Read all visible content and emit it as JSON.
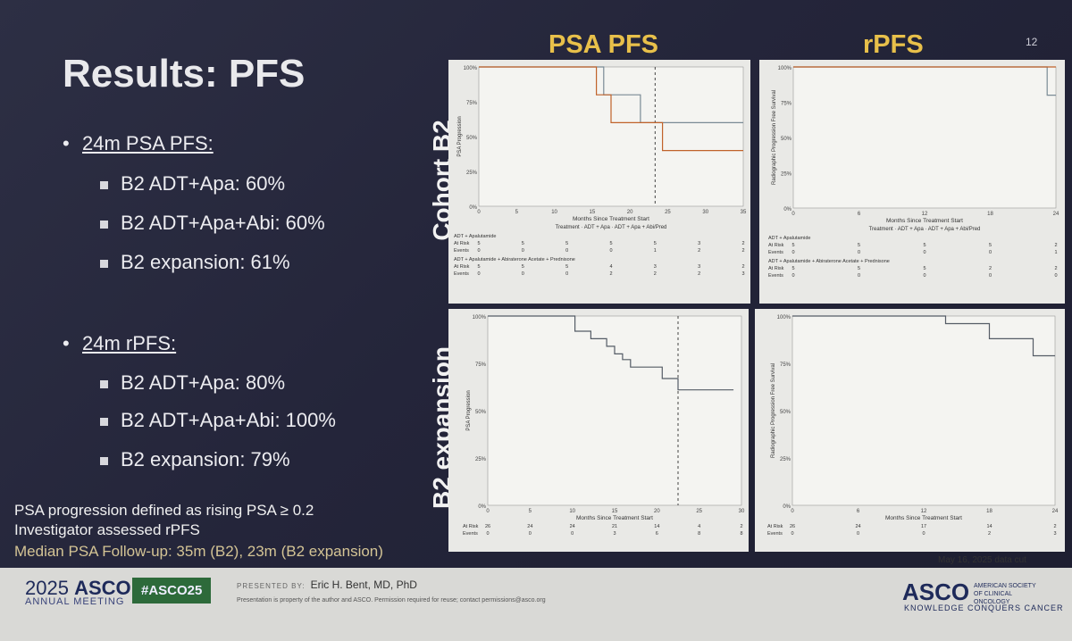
{
  "slide": {
    "title": "Results: PFS",
    "page_number": "12",
    "psa_pfs_heading": "24m PSA PFS:",
    "psa_items": [
      "B2 ADT+Apa: 60%",
      "B2 ADT+Apa+Abi: 60%",
      "B2 expansion: 61%"
    ],
    "rpfs_heading": "24m rPFS:",
    "rpfs_items": [
      "B2 ADT+Apa: 80%",
      "B2 ADT+Apa+Abi: 100%",
      "B2 expansion: 79%"
    ],
    "notes": [
      "PSA progression defined as rising PSA ≥ 0.2",
      "Investigator assessed rPFS",
      "Median PSA Follow-up: 35m (B2), 23m (B2 expansion)"
    ],
    "col_headers": [
      "PSA PFS",
      "rPFS"
    ],
    "row_headers": [
      "Cohort B2",
      "B2 expansion"
    ],
    "data_cut": "May 16, 2025 data cut"
  },
  "footer": {
    "year": "2025",
    "asco": "ASCO",
    "annual_meeting": "ANNUAL MEETING",
    "hashtag": "#ASCO25",
    "presented_by": "PRESENTED BY:",
    "presenter": "Eric H. Bent, MD, PhD",
    "disclaimer": "Presentation is property of the author and ASCO. Permission required for reuse; contact permissions@asco.org",
    "right_logo": "ASCO",
    "right_logo_sub": "AMERICAN SOCIETY OF CLINICAL ONCOLOGY",
    "tagline": "KNOWLEDGE CONQUERS CANCER"
  },
  "colors": {
    "gold": "#e8c04a",
    "adt_apa": "#7a8a95",
    "adt_apa_abi": "#c0622a"
  },
  "chart_data": [
    {
      "type": "line",
      "panel": "Cohort B2 PSA PFS",
      "xlabel": "Months Since Treatment Start",
      "ylabel": "PSA Progression",
      "x_ticks": [
        "0",
        "5",
        "10",
        "15",
        "20",
        "25",
        "30",
        "35"
      ],
      "y_ticks": [
        "0%",
        "25%",
        "50%",
        "75%",
        "100%"
      ],
      "xlim": [
        0,
        36
      ],
      "ylim": [
        0,
        1
      ],
      "legend": "Treatment  ·  ADT + Apa  ·  ADT + Apa + Abi/Pred",
      "series": [
        {
          "name": "ADT + Apa",
          "x": [
            0,
            17,
            17,
            22,
            22,
            36
          ],
          "y": [
            1.0,
            1.0,
            0.8,
            0.8,
            0.6,
            0.6
          ]
        },
        {
          "name": "ADT + Apa + Abi/Pred",
          "x": [
            0,
            16,
            16,
            18,
            18,
            25,
            25,
            36
          ],
          "y": [
            1.0,
            1.0,
            0.8,
            0.8,
            0.6,
            0.6,
            0.4,
            0.4
          ]
        }
      ],
      "risk_table": [
        {
          "group": "ADT + Apalutamide",
          "at_risk": [
            "5",
            "5",
            "5",
            "5",
            "5",
            "3",
            "2"
          ],
          "events": [
            "0",
            "0",
            "0",
            "0",
            "1",
            "2",
            "2"
          ]
        },
        {
          "group": "ADT + Apalutamide + Abiraterone Acetate + Prednisone",
          "at_risk": [
            "5",
            "5",
            "5",
            "4",
            "3",
            "3",
            "2"
          ],
          "events": [
            "0",
            "0",
            "0",
            "2",
            "2",
            "2",
            "3"
          ]
        }
      ],
      "reference_line_x": 24
    },
    {
      "type": "line",
      "panel": "Cohort B2 rPFS",
      "xlabel": "Months Since Treatment Start",
      "ylabel": "Radiographic Progression Free Survival",
      "x_ticks": [
        "0",
        "6",
        "12",
        "18",
        "24"
      ],
      "y_ticks": [
        "0%",
        "25%",
        "50%",
        "75%",
        "100%"
      ],
      "xlim": [
        0,
        24
      ],
      "ylim": [
        0,
        1
      ],
      "legend": "Treatment  ·  ADT + Apa  ·  ADT + Apa + Abi/Pred",
      "series": [
        {
          "name": "ADT + Apa",
          "x": [
            0,
            23.2,
            23.2,
            24
          ],
          "y": [
            1.0,
            1.0,
            0.8,
            0.8
          ]
        },
        {
          "name": "ADT + Apa + Abi/Pred",
          "x": [
            0,
            24
          ],
          "y": [
            1.0,
            1.0
          ]
        }
      ],
      "risk_table": [
        {
          "group": "ADT + Apalutamide",
          "at_risk": [
            "5",
            "5",
            "5",
            "5",
            "2"
          ],
          "events": [
            "0",
            "0",
            "0",
            "0",
            "1"
          ]
        },
        {
          "group": "ADT + Apalutamide + Abiraterone Acetate + Prednisone",
          "at_risk": [
            "5",
            "5",
            "5",
            "2",
            "2"
          ],
          "events": [
            "0",
            "0",
            "0",
            "0",
            "0"
          ]
        }
      ]
    },
    {
      "type": "line",
      "panel": "B2 expansion PSA PFS",
      "xlabel": "Months Since Treatment Start",
      "ylabel": "PSA Progression",
      "x_ticks": [
        "0",
        "5",
        "10",
        "15",
        "20",
        "25",
        "30"
      ],
      "y_ticks": [
        "0%",
        "25%",
        "50%",
        "75%",
        "100%"
      ],
      "xlim": [
        0,
        32
      ],
      "ylim": [
        0,
        1
      ],
      "series": [
        {
          "name": "B2 expansion",
          "x": [
            0,
            11,
            11,
            13,
            13,
            15,
            15,
            16,
            16,
            17,
            17,
            18,
            18,
            22,
            22,
            24,
            24,
            31
          ],
          "y": [
            1.0,
            1.0,
            0.92,
            0.92,
            0.88,
            0.88,
            0.84,
            0.84,
            0.8,
            0.8,
            0.77,
            0.77,
            0.73,
            0.73,
            0.67,
            0.67,
            0.61,
            0.61
          ]
        }
      ],
      "risk_table": [
        {
          "group": "",
          "at_risk": [
            "26",
            "24",
            "24",
            "21",
            "14",
            "4",
            "2"
          ],
          "events": [
            "0",
            "0",
            "0",
            "3",
            "6",
            "8",
            "8"
          ]
        }
      ],
      "reference_line_x": 24
    },
    {
      "type": "line",
      "panel": "B2 expansion rPFS",
      "xlabel": "Months Since Treatment Start",
      "ylabel": "Radiographic Progression Free Survival",
      "x_ticks": [
        "0",
        "6",
        "12",
        "18",
        "24"
      ],
      "y_ticks": [
        "0%",
        "25%",
        "50%",
        "75%",
        "100%"
      ],
      "xlim": [
        0,
        24
      ],
      "ylim": [
        0,
        1
      ],
      "series": [
        {
          "name": "B2 expansion",
          "x": [
            0,
            14,
            14,
            18,
            18,
            22,
            22,
            24
          ],
          "y": [
            1.0,
            1.0,
            0.96,
            0.96,
            0.88,
            0.88,
            0.79,
            0.79
          ]
        }
      ],
      "risk_table": [
        {
          "group": "",
          "at_risk": [
            "26",
            "24",
            "17",
            "14",
            "2"
          ],
          "events": [
            "0",
            "0",
            "0",
            "2",
            "3"
          ]
        }
      ]
    }
  ]
}
